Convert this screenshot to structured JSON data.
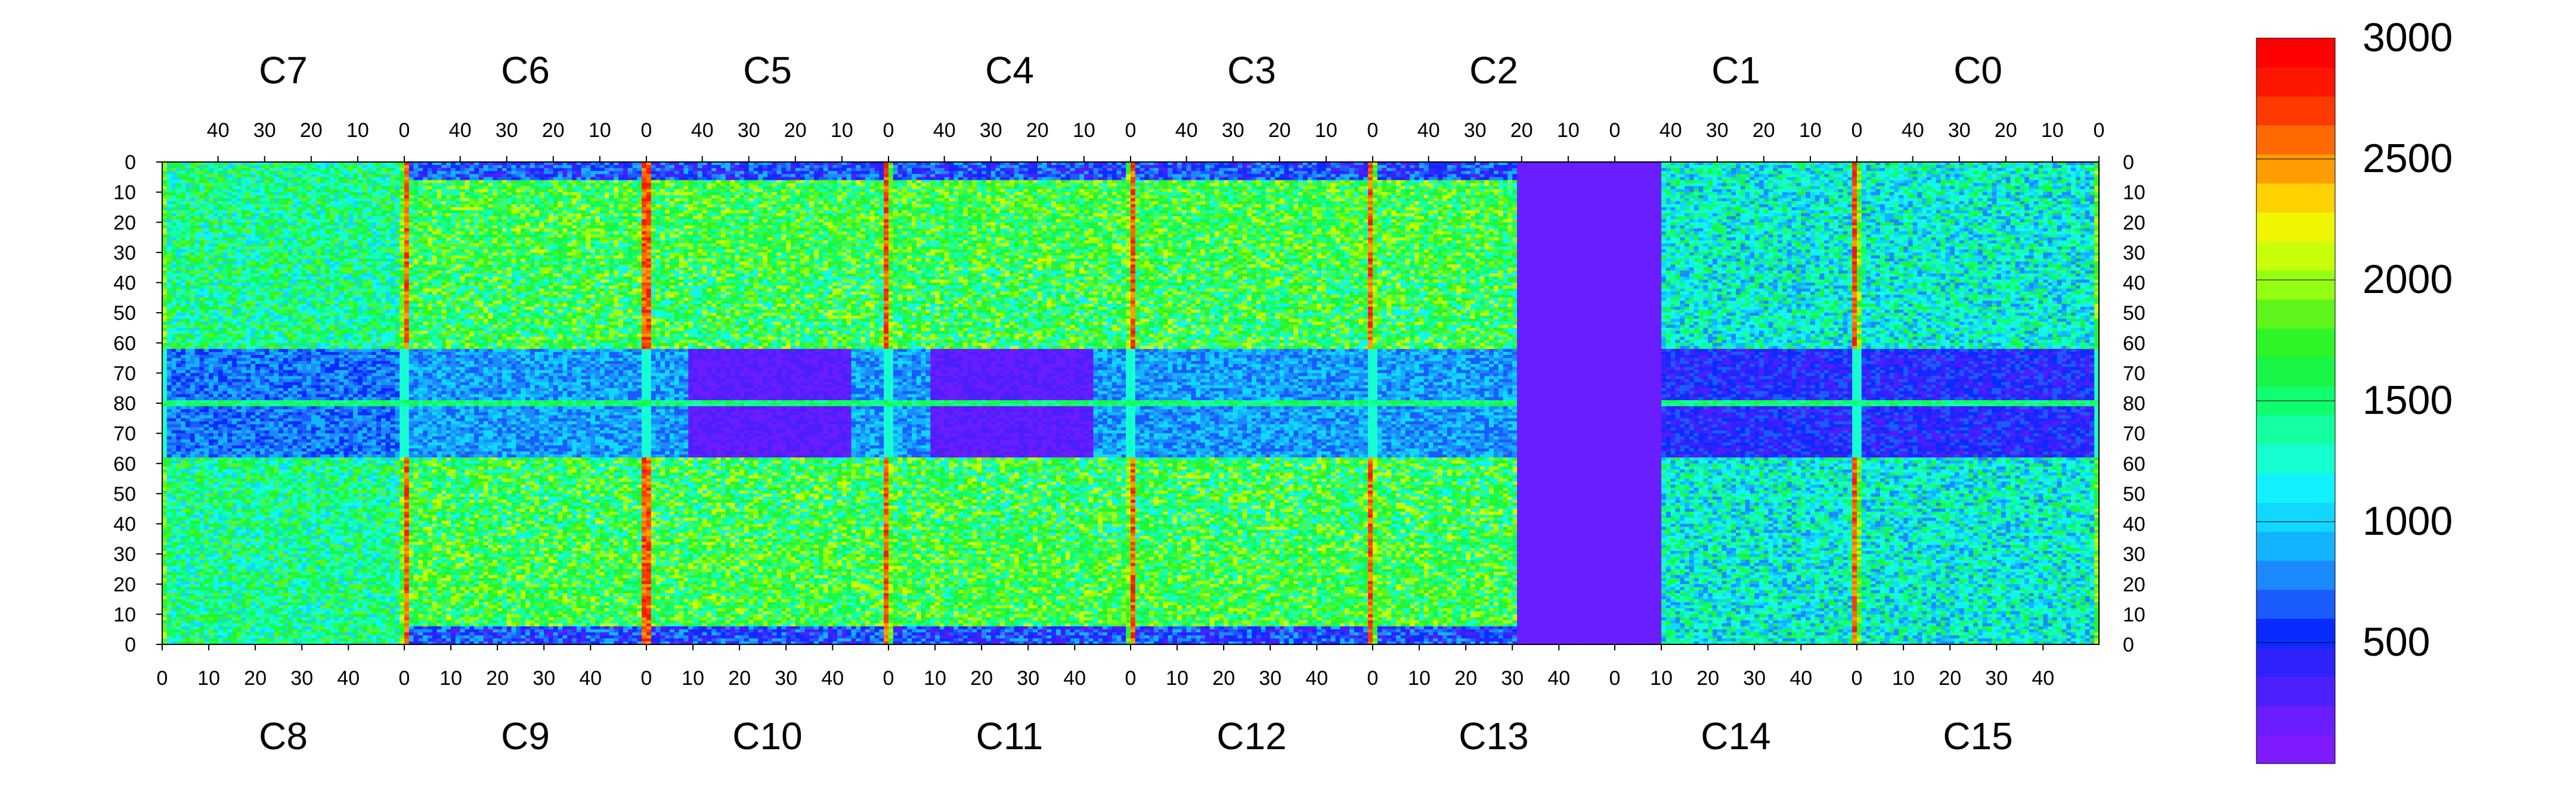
{
  "chart_data": {
    "type": "heatmap",
    "title": "",
    "top_chip_labels": [
      "C7",
      "C6",
      "C5",
      "C4",
      "C3",
      "C2",
      "C1",
      "C0"
    ],
    "bottom_chip_labels": [
      "C8",
      "C9",
      "C10",
      "C11",
      "C12",
      "C13",
      "C14",
      "C15"
    ],
    "top_x_ticks": [
      "40",
      "30",
      "20",
      "10",
      "0"
    ],
    "bottom_x_ticks": [
      "0",
      "10",
      "20",
      "30",
      "40"
    ],
    "y_ticks": [
      "0",
      "10",
      "20",
      "30",
      "40",
      "50",
      "60",
      "70",
      "80",
      "70",
      "60",
      "50",
      "40",
      "30",
      "20",
      "10",
      "0"
    ],
    "chip_columns": 52,
    "rows_per_half": 80,
    "zlim": [
      0,
      3000
    ],
    "colorbar_ticks": [
      "3000",
      "2500",
      "2000",
      "1500",
      "1000",
      "500"
    ],
    "colorbar_tick_values": [
      3000,
      2500,
      2000,
      1500,
      1000,
      500
    ],
    "palette": [
      "#7e1bff",
      "#6a1dff",
      "#4d1fff",
      "#2f22ff",
      "#0a2bff",
      "#1a5cff",
      "#1c8aff",
      "#13b4ff",
      "#10d8ff",
      "#12f1ff",
      "#16ffd0",
      "#15ffa3",
      "#10ff6e",
      "#18f546",
      "#2ef528",
      "#5ef51a",
      "#93ff12",
      "#c8ff0a",
      "#f0f600",
      "#ffd200",
      "#ff9d00",
      "#ff6a00",
      "#ff3a00",
      "#ff1600",
      "#ff0000"
    ],
    "features": {
      "dead_chip": "C13/C2",
      "hot_columns_at_chip_edge": true,
      "cold_region_rows": [
        62,
        80
      ],
      "masked_blocks": "C9-C10, C11-C12 (rows 62-80)"
    }
  }
}
